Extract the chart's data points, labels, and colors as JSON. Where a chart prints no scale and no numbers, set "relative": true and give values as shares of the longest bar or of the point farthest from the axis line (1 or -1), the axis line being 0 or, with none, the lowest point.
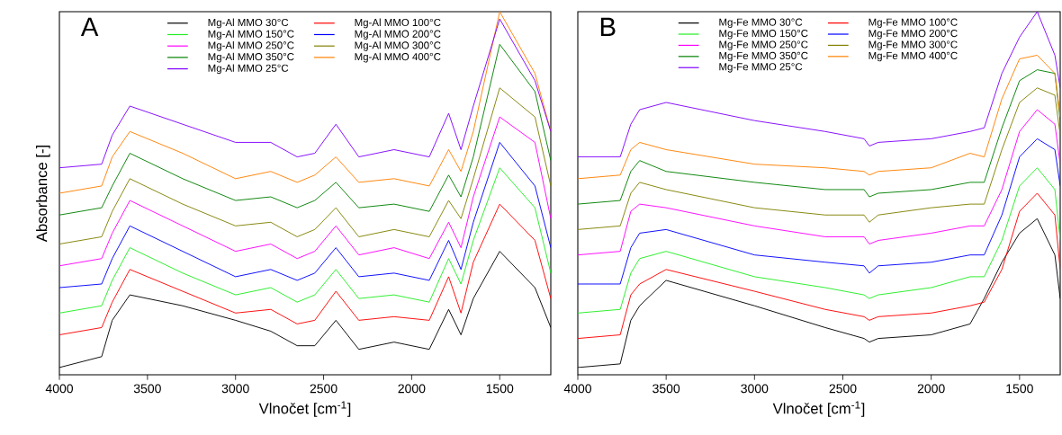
{
  "chart_data": [
    {
      "type": "line",
      "title": "A",
      "xlabel": "Vlnočet [cm$^{-1}$]",
      "ylabel": "Absorbance [-]",
      "relative": true,
      "legend": "top",
      "xlim": [
        4000,
        1210
      ],
      "xticks": [
        4000,
        3500,
        3000,
        2500,
        2000,
        1500
      ],
      "x": [
        4000,
        3760,
        3700,
        3600,
        3300,
        3000,
        2800,
        2650,
        2550,
        2430,
        2300,
        2100,
        1900,
        1790,
        1720,
        1650,
        1500,
        1300,
        1210
      ],
      "series": [
        {
          "name": "Mg-Al MMO 30°C",
          "color": "#000000",
          "values": [
            0.02,
            0.05,
            0.15,
            0.22,
            0.19,
            0.15,
            0.12,
            0.08,
            0.08,
            0.15,
            0.07,
            0.09,
            0.07,
            0.18,
            0.11,
            0.21,
            0.34,
            0.24,
            0.13
          ]
        },
        {
          "name": "Mg-Al MMO 100°C",
          "color": "#ff0000",
          "values": [
            0.11,
            0.13,
            0.2,
            0.29,
            0.23,
            0.17,
            0.18,
            0.14,
            0.15,
            0.23,
            0.15,
            0.16,
            0.15,
            0.27,
            0.17,
            0.31,
            0.47,
            0.37,
            0.21
          ]
        },
        {
          "name": "Mg-Al MMO 150°C",
          "color": "#22ee22",
          "values": [
            0.17,
            0.19,
            0.26,
            0.35,
            0.28,
            0.22,
            0.24,
            0.2,
            0.22,
            0.29,
            0.21,
            0.22,
            0.2,
            0.32,
            0.25,
            0.37,
            0.57,
            0.46,
            0.28
          ]
        },
        {
          "name": "Mg-Al MMO 200°C",
          "color": "#0000ff",
          "values": [
            0.24,
            0.25,
            0.32,
            0.41,
            0.34,
            0.27,
            0.29,
            0.26,
            0.28,
            0.35,
            0.27,
            0.28,
            0.26,
            0.37,
            0.29,
            0.42,
            0.64,
            0.52,
            0.35
          ]
        },
        {
          "name": "Mg-Al MMO 250°C",
          "color": "#ff00ff",
          "values": [
            0.3,
            0.32,
            0.39,
            0.48,
            0.41,
            0.34,
            0.36,
            0.32,
            0.34,
            0.41,
            0.33,
            0.35,
            0.32,
            0.42,
            0.35,
            0.49,
            0.71,
            0.64,
            0.43
          ]
        },
        {
          "name": "Mg-Al MMO 300°C",
          "color": "#808000",
          "values": [
            0.36,
            0.38,
            0.45,
            0.54,
            0.47,
            0.41,
            0.42,
            0.38,
            0.4,
            0.46,
            0.38,
            0.4,
            0.38,
            0.48,
            0.43,
            0.54,
            0.79,
            0.71,
            0.52
          ]
        },
        {
          "name": "Mg-Al MMO 350°C",
          "color": "#008000",
          "values": [
            0.44,
            0.46,
            0.52,
            0.61,
            0.54,
            0.48,
            0.49,
            0.46,
            0.48,
            0.53,
            0.46,
            0.47,
            0.45,
            0.55,
            0.49,
            0.6,
            0.91,
            0.78,
            0.59
          ]
        },
        {
          "name": "Mg-Al MMO 400°C",
          "color": "#ff8000",
          "values": [
            0.5,
            0.52,
            0.6,
            0.67,
            0.61,
            0.54,
            0.56,
            0.53,
            0.55,
            0.6,
            0.53,
            0.54,
            0.52,
            0.62,
            0.56,
            0.67,
            1.0,
            0.83,
            0.67
          ]
        },
        {
          "name": "Mg-Al MMO 25°C",
          "color": "#8000ff",
          "values": [
            0.57,
            0.58,
            0.66,
            0.74,
            0.69,
            0.64,
            0.64,
            0.6,
            0.61,
            0.69,
            0.6,
            0.62,
            0.6,
            0.72,
            0.62,
            0.74,
            0.98,
            0.81,
            0.67
          ]
        }
      ]
    },
    {
      "type": "line",
      "title": "B",
      "xlabel": "Vlnočet [cm$^{-1}$]",
      "relative": true,
      "legend": "top",
      "xlim": [
        4000,
        1270
      ],
      "xticks": [
        4000,
        3500,
        3000,
        2500,
        2000,
        1500
      ],
      "x": [
        4000,
        3760,
        3700,
        3650,
        3500,
        3000,
        2600,
        2380,
        2350,
        2300,
        2000,
        1780,
        1700,
        1600,
        1500,
        1400,
        1300,
        1270
      ],
      "series": [
        {
          "name": "Mg-Fe MMO 30°C",
          "color": "#000000",
          "values": [
            0.02,
            0.03,
            0.15,
            0.19,
            0.26,
            0.19,
            0.13,
            0.1,
            0.09,
            0.1,
            0.11,
            0.14,
            0.21,
            0.31,
            0.39,
            0.43,
            0.33,
            0.21
          ]
        },
        {
          "name": "Mg-Fe MMO 100°C",
          "color": "#ff0000",
          "values": [
            0.1,
            0.11,
            0.22,
            0.25,
            0.29,
            0.23,
            0.18,
            0.16,
            0.15,
            0.16,
            0.17,
            0.19,
            0.2,
            0.29,
            0.45,
            0.5,
            0.44,
            0.29
          ]
        },
        {
          "name": "Mg-Fe MMO 150°C",
          "color": "#22ee22",
          "values": [
            0.17,
            0.18,
            0.28,
            0.32,
            0.34,
            0.27,
            0.24,
            0.22,
            0.21,
            0.22,
            0.24,
            0.27,
            0.27,
            0.37,
            0.52,
            0.57,
            0.51,
            0.37
          ]
        },
        {
          "name": "Mg-Fe MMO 200°C",
          "color": "#0000ff",
          "values": [
            0.25,
            0.25,
            0.35,
            0.39,
            0.4,
            0.33,
            0.31,
            0.3,
            0.28,
            0.3,
            0.31,
            0.33,
            0.33,
            0.44,
            0.6,
            0.65,
            0.62,
            0.52
          ]
        },
        {
          "name": "Mg-Fe MMO 250°C",
          "color": "#ff00ff",
          "values": [
            0.33,
            0.34,
            0.45,
            0.47,
            0.46,
            0.41,
            0.38,
            0.38,
            0.36,
            0.37,
            0.39,
            0.41,
            0.41,
            0.51,
            0.67,
            0.73,
            0.69,
            0.58
          ]
        },
        {
          "name": "Mg-Fe MMO 300°C",
          "color": "#808000",
          "values": [
            0.4,
            0.41,
            0.5,
            0.53,
            0.51,
            0.46,
            0.44,
            0.44,
            0.42,
            0.44,
            0.46,
            0.47,
            0.47,
            0.62,
            0.75,
            0.79,
            0.77,
            0.66
          ]
        },
        {
          "name": "Mg-Fe MMO 350°C",
          "color": "#008000",
          "values": [
            0.47,
            0.48,
            0.56,
            0.59,
            0.56,
            0.53,
            0.51,
            0.51,
            0.49,
            0.5,
            0.51,
            0.53,
            0.53,
            0.68,
            0.81,
            0.84,
            0.83,
            0.7
          ]
        },
        {
          "name": "Mg-Fe MMO 400°C",
          "color": "#ff8000",
          "values": [
            0.54,
            0.55,
            0.62,
            0.64,
            0.62,
            0.58,
            0.57,
            0.56,
            0.55,
            0.56,
            0.57,
            0.61,
            0.6,
            0.76,
            0.87,
            0.88,
            0.83,
            0.71
          ]
        },
        {
          "name": "Mg-Fe MMO 25°C",
          "color": "#8000ff",
          "values": [
            0.6,
            0.6,
            0.69,
            0.73,
            0.75,
            0.7,
            0.67,
            0.65,
            0.63,
            0.64,
            0.65,
            0.67,
            0.68,
            0.83,
            0.93,
            1.0,
            0.88,
            0.79
          ]
        }
      ]
    }
  ]
}
